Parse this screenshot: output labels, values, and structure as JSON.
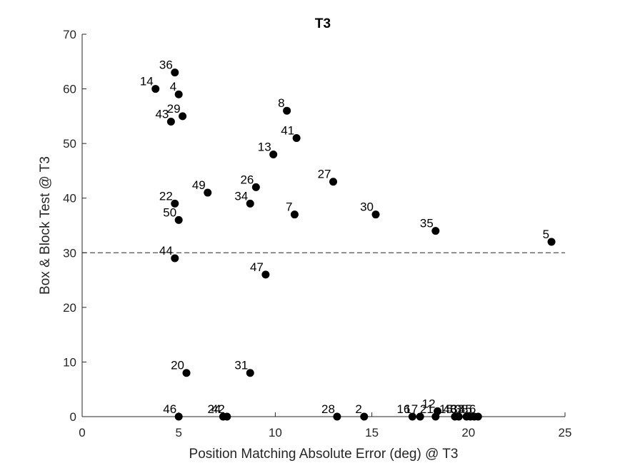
{
  "chart_data": {
    "type": "scatter",
    "title": "T3",
    "xlabel": "Position Matching Absolute Error (deg) @ T3",
    "ylabel": "Box & Block Test @ T3",
    "xlim": [
      0,
      25
    ],
    "ylim": [
      0,
      70
    ],
    "xticks": [
      "0",
      "5",
      "10",
      "15",
      "20",
      "25"
    ],
    "yticks": [
      "0",
      "10",
      "20",
      "30",
      "40",
      "50",
      "60",
      "70"
    ],
    "grid": false,
    "reference_line": {
      "y": 30,
      "style": "dashed"
    },
    "marker_color": "#000000",
    "points": [
      {
        "label": "36",
        "x": 4.8,
        "y": 63
      },
      {
        "label": "14",
        "x": 3.8,
        "y": 60
      },
      {
        "label": "4",
        "x": 5.0,
        "y": 59
      },
      {
        "label": "43",
        "x": 4.6,
        "y": 54
      },
      {
        "label": "29",
        "x": 5.2,
        "y": 55
      },
      {
        "label": "8",
        "x": 10.6,
        "y": 56
      },
      {
        "label": "41",
        "x": 11.1,
        "y": 51
      },
      {
        "label": "13",
        "x": 9.9,
        "y": 48
      },
      {
        "label": "27",
        "x": 13.0,
        "y": 43
      },
      {
        "label": "26",
        "x": 9.0,
        "y": 42
      },
      {
        "label": "49",
        "x": 6.5,
        "y": 41
      },
      {
        "label": "34",
        "x": 8.7,
        "y": 39
      },
      {
        "label": "22",
        "x": 4.8,
        "y": 39
      },
      {
        "label": "7",
        "x": 11.0,
        "y": 37
      },
      {
        "label": "30",
        "x": 15.2,
        "y": 37
      },
      {
        "label": "50",
        "x": 5.0,
        "y": 36
      },
      {
        "label": "35",
        "x": 18.3,
        "y": 34
      },
      {
        "label": "5",
        "x": 24.3,
        "y": 32
      },
      {
        "label": "44",
        "x": 4.8,
        "y": 29
      },
      {
        "label": "47",
        "x": 9.5,
        "y": 26
      },
      {
        "label": "20",
        "x": 5.4,
        "y": 8
      },
      {
        "label": "31",
        "x": 8.7,
        "y": 8
      },
      {
        "label": "46",
        "x": 5.0,
        "y": 0
      },
      {
        "label": "24",
        "x": 7.3,
        "y": 0
      },
      {
        "label": "42",
        "x": 7.5,
        "y": 0
      },
      {
        "label": "28",
        "x": 13.2,
        "y": 0
      },
      {
        "label": "2",
        "x": 14.6,
        "y": 0
      },
      {
        "label": "16",
        "x": 17.1,
        "y": 0
      },
      {
        "label": "17",
        "x": 17.5,
        "y": 0
      },
      {
        "label": "12",
        "x": 18.4,
        "y": 1
      },
      {
        "label": "21",
        "x": 18.3,
        "y": 0
      },
      {
        "label": "15",
        "x": 19.3,
        "y": 0
      },
      {
        "label": "48",
        "x": 19.5,
        "y": 0
      },
      {
        "label": "33",
        "x": 19.9,
        "y": 0
      },
      {
        "label": "38",
        "x": 20.1,
        "y": 0
      },
      {
        "label": "45",
        "x": 20.3,
        "y": 0
      },
      {
        "label": "6",
        "x": 20.5,
        "y": 0
      }
    ]
  }
}
